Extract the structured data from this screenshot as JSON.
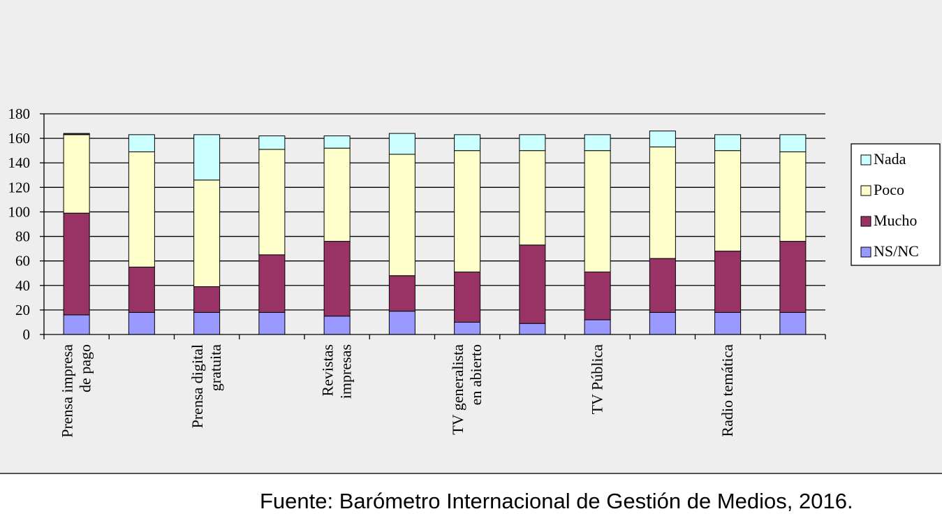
{
  "chart_data": {
    "type": "bar",
    "stacked": true,
    "categories": [
      "Prensa impresa de pago",
      "",
      "Prensa digital gratuita",
      "",
      "Revistas impresas",
      "",
      "TV generalista en abierto",
      "",
      "TV Pública",
      "",
      "Radio temática",
      ""
    ],
    "category_lines": [
      [
        "Prensa impresa",
        "de pago"
      ],
      [],
      [
        "Prensa digital",
        "gratuita"
      ],
      [],
      [
        "Revistas",
        "impresas"
      ],
      [],
      [
        "TV generalista",
        "en abierto"
      ],
      [],
      [
        "TV Pública"
      ],
      [],
      [
        "Radio temática"
      ],
      []
    ],
    "series": [
      {
        "name": "NS/NC",
        "color": "#9999ff",
        "values": [
          16,
          18,
          18,
          18,
          15,
          19,
          10,
          9,
          12,
          18,
          18,
          18
        ]
      },
      {
        "name": "Mucho",
        "color": "#993366",
        "values": [
          83,
          37,
          21,
          47,
          61,
          29,
          41,
          64,
          39,
          44,
          50,
          58
        ]
      },
      {
        "name": "Poco",
        "color": "#ffffcc",
        "values": [
          64,
          94,
          87,
          86,
          76,
          99,
          99,
          77,
          99,
          91,
          82,
          73
        ]
      },
      {
        "name": "Nada",
        "color": "#ccffff",
        "values": [
          0,
          14,
          37,
          11,
          10,
          17,
          13,
          13,
          13,
          13,
          13,
          14
        ]
      },
      {
        "name": "",
        "color": "#333333",
        "values": [
          1,
          0,
          0,
          0,
          0,
          0,
          0,
          0,
          0,
          0,
          0,
          0
        ]
      }
    ],
    "legend_order": [
      "Nada",
      "Poco",
      "Mucho",
      "NS/NC"
    ],
    "yticks": [
      0,
      20,
      40,
      60,
      80,
      100,
      120,
      140,
      160,
      180
    ],
    "ylim": [
      0,
      180
    ],
    "grid": true,
    "legend_position": "right",
    "title": "",
    "xlabel": "",
    "ylabel": ""
  },
  "source_note": "Fuente: Barómetro Internacional de Gestión de Medios, 2016."
}
